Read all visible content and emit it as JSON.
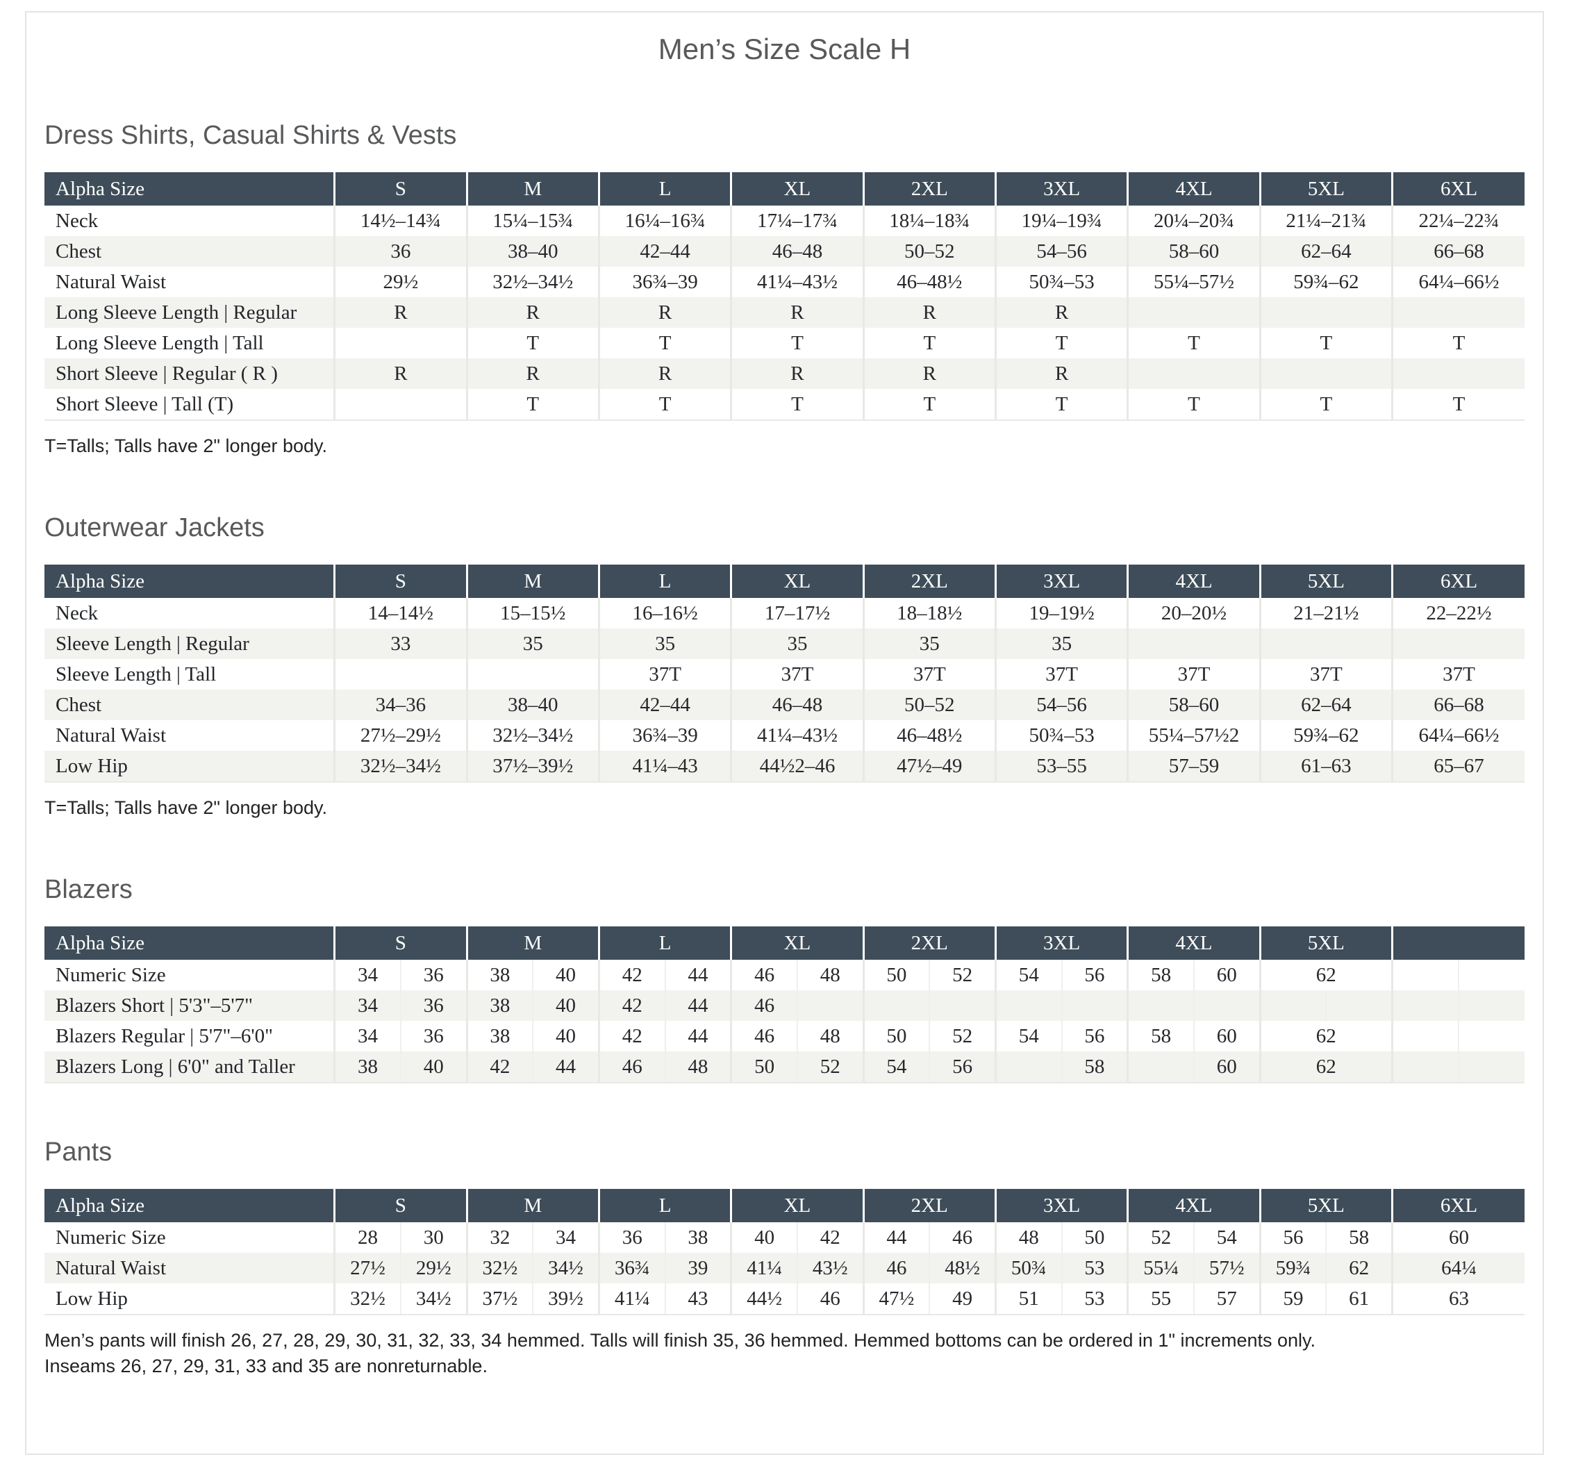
{
  "page": {
    "title": "Men’s Size Scale H",
    "colors": {
      "table_header_bg": "#3e4d59",
      "table_header_text": "#ffffff",
      "row_alt_bg": "#f2f2ef",
      "heading_text": "#58595b",
      "body_text": "#26282b",
      "card_border": "#e4e4e4"
    }
  },
  "tables": [
    {
      "section": "Dress Shirts, Casual Shirts & Vests",
      "type": "single",
      "label_header": "Alpha Size",
      "columns": [
        "S",
        "M",
        "L",
        "XL",
        "2XL",
        "3XL",
        "4XL",
        "5XL",
        "6XL"
      ],
      "rows": [
        {
          "label": "Neck",
          "values": [
            "14½–14¾",
            "15¼–15¾",
            "16¼–16¾",
            "17¼–17¾",
            "18¼–18¾",
            "19¼–19¾",
            "20¼–20¾",
            "21¼–21¾",
            "22¼–22¾"
          ]
        },
        {
          "label": "Chest",
          "values": [
            "36",
            "38–40",
            "42–44",
            "46–48",
            "50–52",
            "54–56",
            "58–60",
            "62–64",
            "66–68"
          ]
        },
        {
          "label": "Natural Waist",
          "values": [
            "29½",
            "32½–34½",
            "36¾–39",
            "41¼–43½",
            "46–48½",
            "50¾–53",
            "55¼–57½",
            "59¾–62",
            "64¼–66½"
          ]
        },
        {
          "label": "Long Sleeve Length  |  Regular",
          "values": [
            "R",
            "R",
            "R",
            "R",
            "R",
            "R",
            "",
            "",
            ""
          ]
        },
        {
          "label": "Long Sleeve Length  |  Tall",
          "values": [
            "",
            "T",
            "T",
            "T",
            "T",
            "T",
            "T",
            "T",
            "T"
          ]
        },
        {
          "label": "Short Sleeve  |  Regular ( R )",
          "values": [
            "R",
            "R",
            "R",
            "R",
            "R",
            "R",
            "",
            "",
            ""
          ]
        },
        {
          "label": "Short Sleeve  |  Tall (T)",
          "values": [
            "",
            "T",
            "T",
            "T",
            "T",
            "T",
            "T",
            "T",
            "T"
          ]
        }
      ],
      "footnote": "T=Talls; Talls have 2\" longer body."
    },
    {
      "section": "Outerwear Jackets",
      "type": "single",
      "label_header": "Alpha Size",
      "columns": [
        "S",
        "M",
        "L",
        "XL",
        "2XL",
        "3XL",
        "4XL",
        "5XL",
        "6XL"
      ],
      "rows": [
        {
          "label": "Neck",
          "values": [
            "14–14½",
            "15–15½",
            "16–16½",
            "17–17½",
            "18–18½",
            "19–19½",
            "20–20½",
            "21–21½",
            "22–22½"
          ]
        },
        {
          "label": "Sleeve Length  |  Regular",
          "values": [
            "33",
            "35",
            "35",
            "35",
            "35",
            "35",
            "",
            "",
            ""
          ]
        },
        {
          "label": "Sleeve Length  |  Tall",
          "values": [
            "",
            "",
            "37T",
            "37T",
            "37T",
            "37T",
            "37T",
            "37T",
            "37T"
          ]
        },
        {
          "label": "Chest",
          "values": [
            "34–36",
            "38–40",
            "42–44",
            "46–48",
            "50–52",
            "54–56",
            "58–60",
            "62–64",
            "66–68"
          ]
        },
        {
          "label": "Natural Waist",
          "values": [
            "27½–29½",
            "32½–34½",
            "36¾–39",
            "41¼–43½",
            "46–48½",
            "50¾–53",
            "55¼–57½2",
            "59¾–62",
            "64¼–66½"
          ]
        },
        {
          "label": "Low Hip",
          "values": [
            "32½–34½",
            "37½–39½",
            "41¼–43",
            "44½2–46",
            "47½–49",
            "53–55",
            "57–59",
            "61–63",
            "65–67"
          ]
        }
      ],
      "footnote": "T=Talls; Talls have 2\" longer body."
    },
    {
      "section": "Blazers",
      "type": "split",
      "label_header": "Alpha Size",
      "columns": [
        "S",
        "M",
        "L",
        "XL",
        "2XL",
        "3XL",
        "4XL",
        "5XL",
        ""
      ],
      "rows": [
        {
          "label": "Numeric Size",
          "values": [
            [
              "34",
              "36"
            ],
            [
              "38",
              "40"
            ],
            [
              "42",
              "44"
            ],
            [
              "46",
              "48"
            ],
            [
              "50",
              "52"
            ],
            [
              "54",
              "56"
            ],
            [
              "58",
              "60"
            ],
            [
              "62"
            ],
            [
              "",
              ""
            ]
          ]
        },
        {
          "label": "Blazers Short  |  5'3\"–5'7\"",
          "values": [
            [
              "34",
              "36"
            ],
            [
              "38",
              "40"
            ],
            [
              "42",
              "44"
            ],
            [
              "46",
              ""
            ],
            [
              "",
              ""
            ],
            [
              "",
              ""
            ],
            [
              "",
              ""
            ],
            [
              "",
              ""
            ],
            [
              "",
              ""
            ]
          ]
        },
        {
          "label": "Blazers Regular  |  5'7\"–6'0\"",
          "values": [
            [
              "34",
              "36"
            ],
            [
              "38",
              "40"
            ],
            [
              "42",
              "44"
            ],
            [
              "46",
              "48"
            ],
            [
              "50",
              "52"
            ],
            [
              "54",
              "56"
            ],
            [
              "58",
              "60"
            ],
            [
              "62"
            ],
            [
              "",
              ""
            ]
          ]
        },
        {
          "label": "Blazers Long  |  6'0\" and Taller",
          "values": [
            [
              "38",
              "40"
            ],
            [
              "42",
              "44"
            ],
            [
              "46",
              "48"
            ],
            [
              "50",
              "52"
            ],
            [
              "54",
              "56"
            ],
            [
              "",
              "58"
            ],
            [
              "",
              "60"
            ],
            [
              "62"
            ],
            [
              "",
              ""
            ]
          ]
        }
      ]
    },
    {
      "section": "Pants",
      "type": "split",
      "label_header": "Alpha Size",
      "columns": [
        "S",
        "M",
        "L",
        "XL",
        "2XL",
        "3XL",
        "4XL",
        "5XL",
        "6XL"
      ],
      "rows": [
        {
          "label": "Numeric Size",
          "values": [
            [
              "28",
              "30"
            ],
            [
              "32",
              "34"
            ],
            [
              "36",
              "38"
            ],
            [
              "40",
              "42"
            ],
            [
              "44",
              "46"
            ],
            [
              "48",
              "50"
            ],
            [
              "52",
              "54"
            ],
            [
              "56",
              "58"
            ],
            [
              "60"
            ]
          ]
        },
        {
          "label": "Natural Waist",
          "values": [
            [
              "27½",
              "29½"
            ],
            [
              "32½",
              "34½"
            ],
            [
              "36¾",
              "39"
            ],
            [
              "41¼",
              "43½"
            ],
            [
              "46",
              "48½"
            ],
            [
              "50¾",
              "53"
            ],
            [
              "55¼",
              "57½"
            ],
            [
              "59¾",
              "62"
            ],
            [
              "64¼"
            ]
          ]
        },
        {
          "label": "Low Hip",
          "values": [
            [
              "32½",
              "34½"
            ],
            [
              "37½",
              "39½"
            ],
            [
              "41¼",
              "43"
            ],
            [
              "44½",
              "46"
            ],
            [
              "47½",
              "49"
            ],
            [
              "51",
              "53"
            ],
            [
              "55",
              "57"
            ],
            [
              "59",
              "61"
            ],
            [
              "63"
            ]
          ]
        }
      ],
      "footnote_lines": [
        "Men’s pants will finish 26, 27, 28, 29, 30, 31, 32, 33, 34 hemmed. Talls will finish 35, 36 hemmed. Hemmed bottoms can be ordered in 1\" increments only.",
        "Inseams 26, 27, 29, 31, 33 and 35 are nonreturnable."
      ]
    }
  ]
}
